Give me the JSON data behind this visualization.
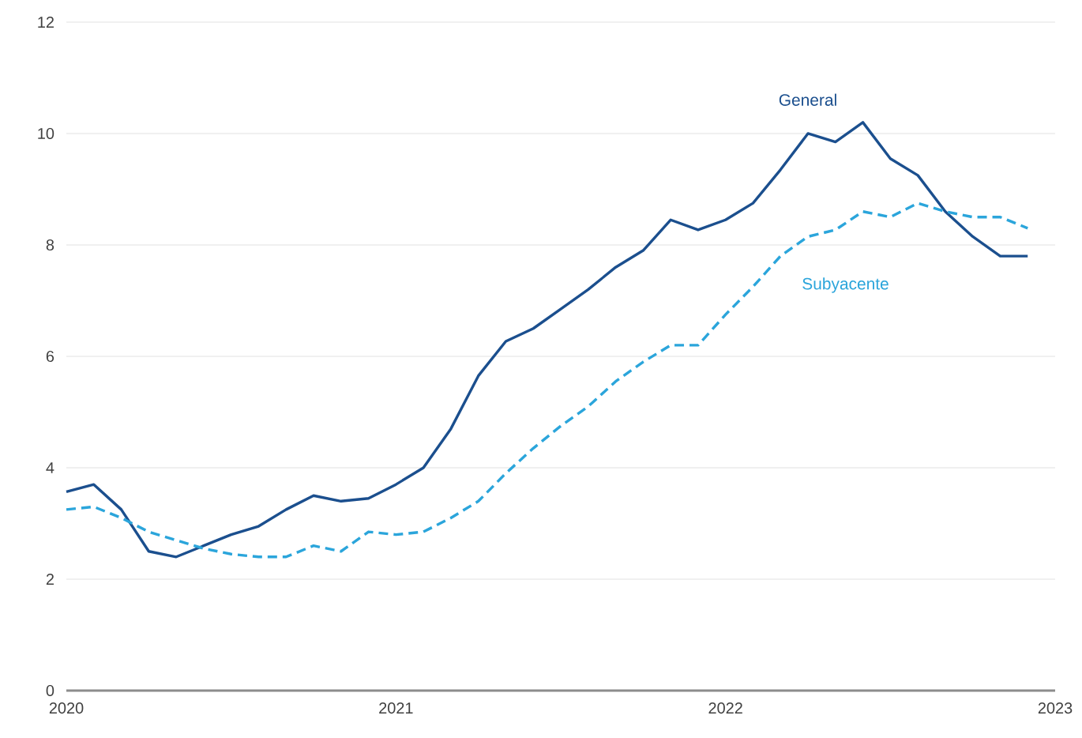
{
  "chart_data": {
    "type": "line",
    "x": [
      "2020-01",
      "2020-02",
      "2020-03",
      "2020-04",
      "2020-05",
      "2020-06",
      "2020-07",
      "2020-08",
      "2020-09",
      "2020-10",
      "2020-11",
      "2020-12",
      "2021-01",
      "2021-02",
      "2021-03",
      "2021-04",
      "2021-05",
      "2021-06",
      "2021-07",
      "2021-08",
      "2021-09",
      "2021-10",
      "2021-11",
      "2021-12",
      "2022-01",
      "2022-02",
      "2022-03",
      "2022-04",
      "2022-05",
      "2022-06",
      "2022-07",
      "2022-08",
      "2022-09",
      "2022-10",
      "2022-11",
      "2022-12"
    ],
    "series": [
      {
        "name": "General",
        "color": "#1b4f8e",
        "line_style": "solid",
        "values": [
          3.57,
          3.7,
          3.25,
          2.5,
          2.4,
          2.6,
          2.8,
          2.95,
          3.25,
          3.5,
          3.4,
          3.45,
          3.7,
          4.0,
          4.7,
          5.65,
          6.27,
          6.5,
          6.85,
          7.2,
          7.6,
          7.9,
          8.45,
          8.27,
          8.45,
          8.75,
          9.35,
          10.0,
          9.85,
          10.2,
          9.55,
          9.25,
          8.6,
          8.15,
          7.8,
          7.8
        ]
      },
      {
        "name": "Subyacente",
        "color": "#2ba5db",
        "line_style": "dashed",
        "values": [
          3.25,
          3.3,
          3.1,
          2.85,
          2.7,
          2.55,
          2.45,
          2.4,
          2.4,
          2.6,
          2.5,
          2.85,
          2.8,
          2.85,
          3.1,
          3.4,
          3.9,
          4.35,
          4.75,
          5.1,
          5.55,
          5.9,
          6.2,
          6.2,
          6.75,
          7.25,
          7.8,
          8.15,
          8.27,
          8.6,
          8.5,
          8.75,
          8.6,
          8.5,
          8.5,
          8.3
        ]
      }
    ],
    "xlim": [
      "2020-01",
      "2023-01"
    ],
    "xticks": [
      "2020",
      "2021",
      "2022",
      "2023"
    ],
    "ylim": [
      0,
      12
    ],
    "yticks": [
      0,
      2,
      4,
      6,
      8,
      10,
      12
    ],
    "grid": "y",
    "legend": false,
    "marker": "none"
  }
}
